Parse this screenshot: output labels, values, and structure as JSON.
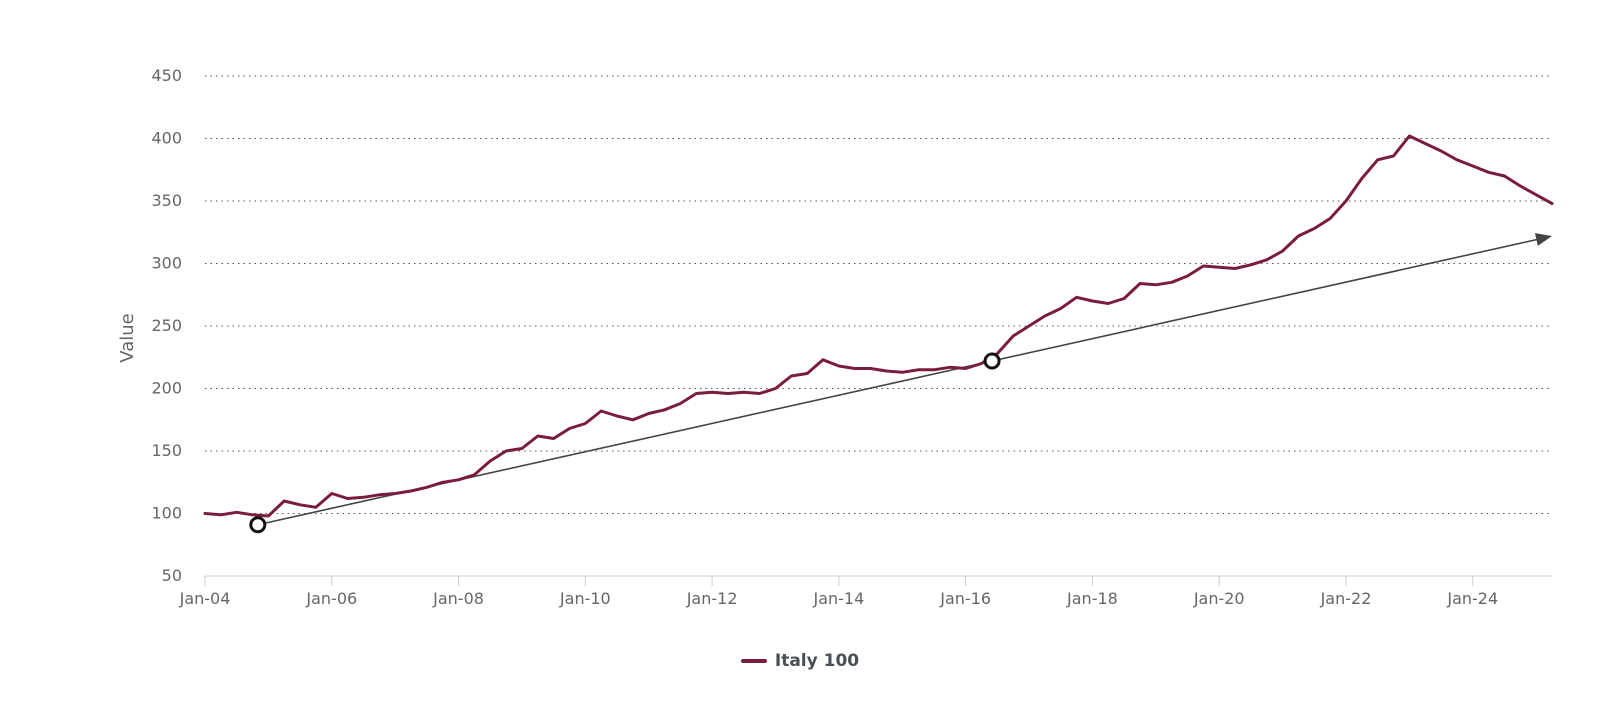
{
  "chart_data": {
    "type": "line",
    "title": "",
    "xlabel": "",
    "ylabel": "Value",
    "ylim": [
      50,
      450
    ],
    "y_ticks": [
      50,
      100,
      150,
      200,
      250,
      300,
      350,
      400,
      450
    ],
    "x_range": [
      "2004-01",
      "2025-04"
    ],
    "x_ticks": [
      "Jan-04",
      "Jan-06",
      "Jan-08",
      "Jan-10",
      "Jan-12",
      "Jan-14",
      "Jan-16",
      "Jan-18",
      "Jan-20",
      "Jan-22",
      "Jan-24"
    ],
    "grid": "horizontal dotted",
    "legend_position": "bottom-center",
    "series": [
      {
        "name": "Italy 100",
        "color": "#7a1c3e",
        "points": [
          [
            "2004-01",
            100
          ],
          [
            "2004-04",
            99
          ],
          [
            "2004-07",
            101
          ],
          [
            "2004-10",
            99
          ],
          [
            "2005-01",
            98
          ],
          [
            "2005-04",
            110
          ],
          [
            "2005-07",
            107
          ],
          [
            "2005-10",
            105
          ],
          [
            "2006-01",
            116
          ],
          [
            "2006-04",
            112
          ],
          [
            "2006-07",
            113
          ],
          [
            "2006-10",
            115
          ],
          [
            "2007-01",
            116
          ],
          [
            "2007-04",
            118
          ],
          [
            "2007-07",
            121
          ],
          [
            "2007-10",
            125
          ],
          [
            "2008-01",
            127
          ],
          [
            "2008-04",
            131
          ],
          [
            "2008-07",
            142
          ],
          [
            "2008-10",
            150
          ],
          [
            "2009-01",
            152
          ],
          [
            "2009-04",
            162
          ],
          [
            "2009-07",
            160
          ],
          [
            "2009-10",
            168
          ],
          [
            "2010-01",
            172
          ],
          [
            "2010-04",
            182
          ],
          [
            "2010-07",
            178
          ],
          [
            "2010-10",
            175
          ],
          [
            "2011-01",
            180
          ],
          [
            "2011-04",
            183
          ],
          [
            "2011-07",
            188
          ],
          [
            "2011-10",
            196
          ],
          [
            "2012-01",
            197
          ],
          [
            "2012-04",
            196
          ],
          [
            "2012-07",
            197
          ],
          [
            "2012-10",
            196
          ],
          [
            "2013-01",
            200
          ],
          [
            "2013-04",
            210
          ],
          [
            "2013-07",
            212
          ],
          [
            "2013-10",
            223
          ],
          [
            "2014-01",
            218
          ],
          [
            "2014-04",
            216
          ],
          [
            "2014-07",
            216
          ],
          [
            "2014-10",
            214
          ],
          [
            "2015-01",
            213
          ],
          [
            "2015-04",
            215
          ],
          [
            "2015-07",
            215
          ],
          [
            "2015-10",
            217
          ],
          [
            "2016-01",
            216
          ],
          [
            "2016-04",
            220
          ],
          [
            "2016-07",
            228
          ],
          [
            "2016-10",
            242
          ],
          [
            "2017-01",
            250
          ],
          [
            "2017-04",
            258
          ],
          [
            "2017-07",
            264
          ],
          [
            "2017-10",
            273
          ],
          [
            "2018-01",
            270
          ],
          [
            "2018-04",
            268
          ],
          [
            "2018-07",
            272
          ],
          [
            "2018-10",
            284
          ],
          [
            "2019-01",
            283
          ],
          [
            "2019-04",
            285
          ],
          [
            "2019-07",
            290
          ],
          [
            "2019-10",
            298
          ],
          [
            "2020-01",
            297
          ],
          [
            "2020-04",
            296
          ],
          [
            "2020-07",
            299
          ],
          [
            "2020-10",
            303
          ],
          [
            "2021-01",
            310
          ],
          [
            "2021-04",
            322
          ],
          [
            "2021-07",
            328
          ],
          [
            "2021-10",
            336
          ],
          [
            "2022-01",
            350
          ],
          [
            "2022-04",
            368
          ],
          [
            "2022-07",
            383
          ],
          [
            "2022-10",
            386
          ],
          [
            "2023-01",
            402
          ],
          [
            "2023-04",
            396
          ],
          [
            "2023-07",
            390
          ],
          [
            "2023-10",
            383
          ],
          [
            "2024-01",
            378
          ],
          [
            "2024-04",
            373
          ],
          [
            "2024-07",
            370
          ],
          [
            "2024-10",
            362
          ],
          [
            "2025-01",
            355
          ],
          [
            "2025-04",
            348
          ]
        ]
      }
    ],
    "trendline": {
      "color": "#444444",
      "start": [
        "2004-11",
        91
      ],
      "end": [
        "2025-04",
        322
      ],
      "markers": [
        [
          "2004-11",
          91
        ],
        [
          "2016-06",
          222
        ]
      ]
    }
  }
}
